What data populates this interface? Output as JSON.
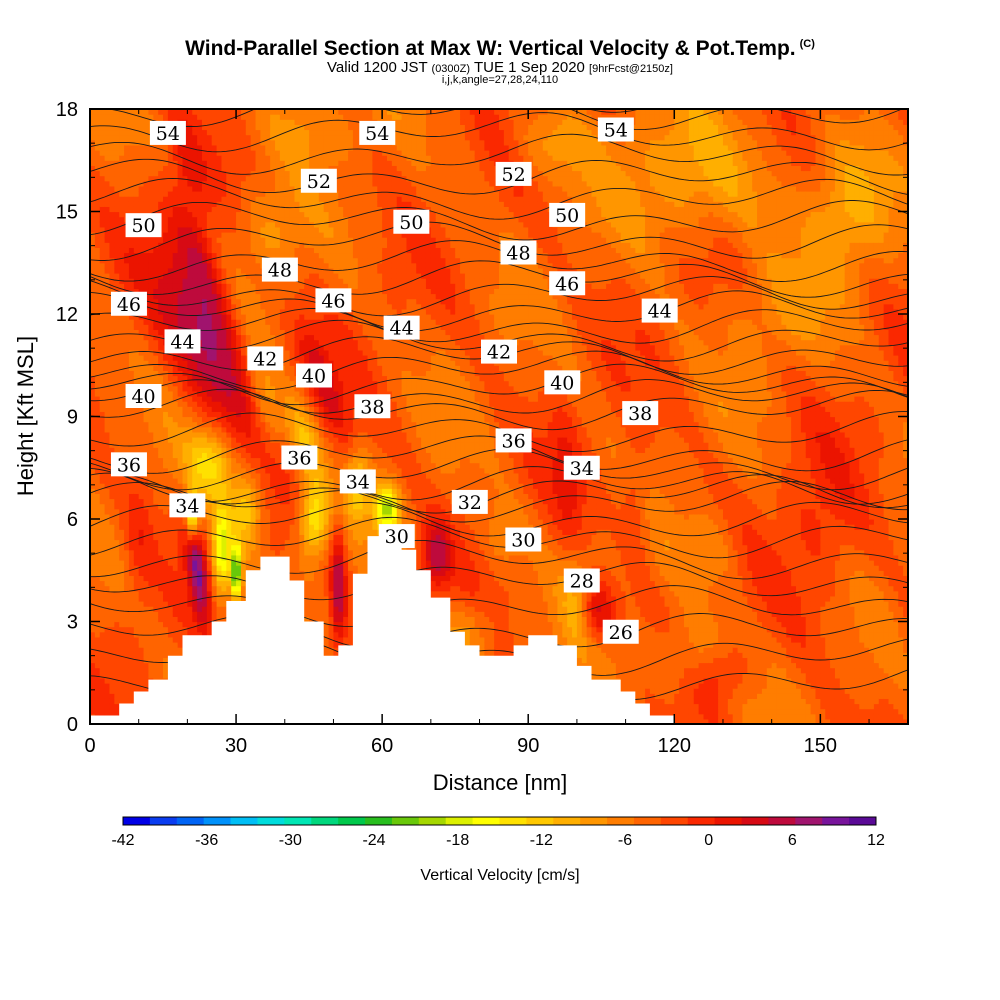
{
  "header": {
    "title_main": "Wind-Parallel Section at Max W: Vertical Velocity & Pot.Temp.",
    "title_tag": "(C)",
    "valid_prefix": "Valid 1200 JST",
    "valid_utc": "(0300Z)",
    "valid_date": "TUE 1 Sep 2020",
    "forecast": "[9hrFcst@2150z]",
    "section_params": "i,j,k,angle=27,28,24,110"
  },
  "chart_data": {
    "type": "heatmap",
    "title": "Wind-Parallel Section at Max W: Vertical Velocity & Pot.Temp.",
    "xlabel": "Distance [nm]",
    "ylabel": "Height [Kft MSL]",
    "xlim": [
      0,
      168
    ],
    "ylim": [
      0,
      18
    ],
    "xticks": [
      0,
      30,
      60,
      90,
      120,
      150
    ],
    "yticks": [
      0,
      3,
      6,
      9,
      12,
      15,
      18
    ],
    "colorbar": {
      "label": "Vertical Velocity [cm/s]",
      "min": -42,
      "max": 12,
      "step": 2,
      "tick_labels": [
        "-42",
        "-36",
        "-30",
        "-24",
        "-18",
        "-12",
        "-6",
        "0",
        "6",
        "12"
      ],
      "colors": [
        "#0000e6",
        "#0a3cf0",
        "#0064f5",
        "#0091fa",
        "#00bef5",
        "#00dcdc",
        "#00e6b4",
        "#00d77d",
        "#00c84b",
        "#28be1e",
        "#69c80a",
        "#a5d700",
        "#dcf000",
        "#ffff00",
        "#ffe100",
        "#ffc800",
        "#ffaf00",
        "#ff9600",
        "#ff7d00",
        "#ff6400",
        "#ff4600",
        "#fa2800",
        "#eb1400",
        "#d70a14",
        "#be0a3c",
        "#a0146e",
        "#78149b",
        "#5a0a96"
      ]
    },
    "contours": {
      "field": "Potential Temperature (C)",
      "labels": [
        {
          "v": 54,
          "x": 16,
          "y": 17.3
        },
        {
          "v": 54,
          "x": 59,
          "y": 17.3
        },
        {
          "v": 54,
          "x": 108,
          "y": 17.4
        },
        {
          "v": 52,
          "x": 47,
          "y": 15.9
        },
        {
          "v": 52,
          "x": 87,
          "y": 16.1
        },
        {
          "v": 50,
          "x": 11,
          "y": 14.6
        },
        {
          "v": 50,
          "x": 66,
          "y": 14.7
        },
        {
          "v": 50,
          "x": 98,
          "y": 14.9
        },
        {
          "v": 48,
          "x": 39,
          "y": 13.3
        },
        {
          "v": 48,
          "x": 88,
          "y": 13.8
        },
        {
          "v": 46,
          "x": 8,
          "y": 12.3
        },
        {
          "v": 46,
          "x": 50,
          "y": 12.4
        },
        {
          "v": 46,
          "x": 98,
          "y": 12.9
        },
        {
          "v": 44,
          "x": 19,
          "y": 11.2
        },
        {
          "v": 44,
          "x": 64,
          "y": 11.6
        },
        {
          "v": 44,
          "x": 117,
          "y": 12.1
        },
        {
          "v": 42,
          "x": 36,
          "y": 10.7
        },
        {
          "v": 42,
          "x": 84,
          "y": 10.9
        },
        {
          "v": 40,
          "x": 11,
          "y": 9.6
        },
        {
          "v": 40,
          "x": 46,
          "y": 10.2
        },
        {
          "v": 40,
          "x": 97,
          "y": 10.0
        },
        {
          "v": 38,
          "x": 58,
          "y": 9.3
        },
        {
          "v": 38,
          "x": 113,
          "y": 9.1
        },
        {
          "v": 36,
          "x": 8,
          "y": 7.6
        },
        {
          "v": 36,
          "x": 43,
          "y": 7.8
        },
        {
          "v": 36,
          "x": 87,
          "y": 8.3
        },
        {
          "v": 34,
          "x": 20,
          "y": 6.4
        },
        {
          "v": 34,
          "x": 55,
          "y": 7.1
        },
        {
          "v": 34,
          "x": 101,
          "y": 7.5
        },
        {
          "v": 32,
          "x": 78,
          "y": 6.5
        },
        {
          "v": 30,
          "x": 63,
          "y": 5.5
        },
        {
          "v": 30,
          "x": 89,
          "y": 5.4
        },
        {
          "v": 28,
          "x": 101,
          "y": 4.2
        },
        {
          "v": 26,
          "x": 109,
          "y": 2.7
        }
      ]
    },
    "terrain_kft": [
      [
        0,
        0.25
      ],
      [
        6,
        0.25
      ],
      [
        6,
        0.6
      ],
      [
        9,
        0.6
      ],
      [
        9,
        0.95
      ],
      [
        12,
        0.95
      ],
      [
        12,
        1.3
      ],
      [
        16,
        1.3
      ],
      [
        16,
        2.0
      ],
      [
        19,
        2.0
      ],
      [
        19,
        2.6
      ],
      [
        25,
        2.6
      ],
      [
        25,
        3.0
      ],
      [
        28,
        3.0
      ],
      [
        28,
        3.6
      ],
      [
        32,
        3.6
      ],
      [
        32,
        4.5
      ],
      [
        35,
        4.5
      ],
      [
        35,
        4.9
      ],
      [
        41,
        4.9
      ],
      [
        41,
        4.2
      ],
      [
        44,
        4.2
      ],
      [
        44,
        3.0
      ],
      [
        48,
        3.0
      ],
      [
        48,
        2.0
      ],
      [
        51,
        2.0
      ],
      [
        51,
        2.3
      ],
      [
        54,
        2.3
      ],
      [
        54,
        4.4
      ],
      [
        57,
        4.4
      ],
      [
        57,
        5.5
      ],
      [
        64,
        5.5
      ],
      [
        64,
        5.1
      ],
      [
        67,
        5.1
      ],
      [
        67,
        4.5
      ],
      [
        70,
        4.5
      ],
      [
        70,
        3.7
      ],
      [
        74,
        3.7
      ],
      [
        74,
        2.7
      ],
      [
        77,
        2.7
      ],
      [
        77,
        2.3
      ],
      [
        80,
        2.3
      ],
      [
        80,
        2.0
      ],
      [
        87,
        2.0
      ],
      [
        87,
        2.3
      ],
      [
        90,
        2.3
      ],
      [
        90,
        2.6
      ],
      [
        96,
        2.6
      ],
      [
        96,
        2.3
      ],
      [
        100,
        2.3
      ],
      [
        100,
        1.7
      ],
      [
        103,
        1.7
      ],
      [
        103,
        1.3
      ],
      [
        109,
        1.3
      ],
      [
        109,
        0.95
      ],
      [
        112,
        0.95
      ],
      [
        112,
        0.6
      ],
      [
        115,
        0.6
      ],
      [
        115,
        0.25
      ],
      [
        120,
        0.25
      ],
      [
        120,
        0
      ],
      [
        168,
        0
      ]
    ],
    "features": [
      {
        "name": "updraft",
        "x": 24,
        "y": 11.0,
        "rx": 6,
        "ry": 3.2,
        "rot": -35,
        "w": 11
      },
      {
        "name": "updraft",
        "x": 23,
        "y": 13.5,
        "rx": 3.5,
        "ry": 2.4,
        "rot": -30,
        "w": 8
      },
      {
        "name": "updraft",
        "x": 20,
        "y": 16.5,
        "rx": 3,
        "ry": 1.6,
        "rot": -20,
        "w": 4
      },
      {
        "name": "updraft",
        "x": 48,
        "y": 10.0,
        "rx": 3,
        "ry": 2.0,
        "rot": -30,
        "w": 7
      },
      {
        "name": "updraft",
        "x": 22,
        "y": 4.5,
        "rx": 2.0,
        "ry": 1.7,
        "rot": -10,
        "w": 11
      },
      {
        "name": "updraft",
        "x": 51,
        "y": 4.0,
        "rx": 1.6,
        "ry": 1.8,
        "rot": 0,
        "w": 10
      },
      {
        "name": "updraft",
        "x": 71,
        "y": 4.9,
        "rx": 3,
        "ry": 1.0,
        "rot": 0,
        "w": 9
      },
      {
        "name": "updraft",
        "x": 104,
        "y": 3.3,
        "rx": 4,
        "ry": 0.9,
        "rot": -10,
        "w": 8
      },
      {
        "name": "updraft",
        "x": 98,
        "y": 7.2,
        "rx": 3,
        "ry": 2.0,
        "rot": -10,
        "w": 4
      },
      {
        "name": "updraft",
        "x": 112,
        "y": 6.5,
        "rx": 3,
        "ry": 1.6,
        "rot": -10,
        "w": 4
      },
      {
        "name": "updraft",
        "x": 130,
        "y": 1.5,
        "rx": 5,
        "ry": 0.8,
        "rot": 0,
        "w": 4
      },
      {
        "name": "updraft",
        "x": 150,
        "y": 5.5,
        "rx": 8,
        "ry": 3.0,
        "rot": 0,
        "w": 3
      },
      {
        "name": "updraft",
        "x": 10,
        "y": 5.5,
        "rx": 3,
        "ry": 2.5,
        "rot": 0,
        "w": 3
      },
      {
        "name": "downdraft",
        "x": 27,
        "y": 5.0,
        "rx": 2.0,
        "ry": 1.4,
        "rot": 0,
        "w": -14
      },
      {
        "name": "downdraft",
        "x": 32,
        "y": 6.3,
        "rx": 3.5,
        "ry": 1.2,
        "rot": 0,
        "w": -10
      },
      {
        "name": "downdraft",
        "x": 25,
        "y": 7.7,
        "rx": 5,
        "ry": 1.1,
        "rot": 0,
        "w": -10
      },
      {
        "name": "downdraft",
        "x": 21,
        "y": 6.1,
        "rx": 1.3,
        "ry": 0.7,
        "rot": 0,
        "w": -17
      },
      {
        "name": "downdraft",
        "x": 30,
        "y": 4.4,
        "rx": 1.0,
        "ry": 0.8,
        "rot": 0,
        "w": -20
      },
      {
        "name": "downdraft",
        "x": 46,
        "y": 6.0,
        "rx": 3,
        "ry": 1.1,
        "rot": 0,
        "w": -12
      },
      {
        "name": "downdraft",
        "x": 44,
        "y": 8.3,
        "rx": 3,
        "ry": 1.3,
        "rot": -20,
        "w": -7
      },
      {
        "name": "downdraft",
        "x": 61,
        "y": 6.3,
        "rx": 2.5,
        "ry": 0.7,
        "rot": 0,
        "w": -15
      },
      {
        "name": "downdraft",
        "x": 36,
        "y": 9.2,
        "rx": 3,
        "ry": 1.5,
        "rot": -20,
        "w": -6
      },
      {
        "name": "downdraft",
        "x": 55,
        "y": 7.0,
        "rx": 2.5,
        "ry": 1.0,
        "rot": 0,
        "w": -8
      },
      {
        "name": "downdraft",
        "x": 37,
        "y": 14.5,
        "rx": 6,
        "ry": 1.5,
        "rot": -30,
        "w": -4
      },
      {
        "name": "downdraft",
        "x": 100,
        "y": 3.6,
        "rx": 3,
        "ry": 1.5,
        "rot": 0,
        "w": -5
      },
      {
        "name": "downdraft",
        "x": 122,
        "y": 2.0,
        "rx": 8,
        "ry": 1.2,
        "rot": 0,
        "w": -4
      },
      {
        "name": "downdraft",
        "x": 78,
        "y": 2.8,
        "rx": 6,
        "ry": 0.9,
        "rot": 0,
        "w": -4
      },
      {
        "name": "downdraft",
        "x": 125,
        "y": 16.0,
        "rx": 16,
        "ry": 2.0,
        "rot": 0,
        "w": -6
      },
      {
        "name": "downdraft",
        "x": 155,
        "y": 15.0,
        "rx": 8,
        "ry": 2.0,
        "rot": 0,
        "w": -6
      },
      {
        "name": "downdraft",
        "x": 95,
        "y": 17.0,
        "rx": 8,
        "ry": 1.0,
        "rot": 0,
        "w": -4
      },
      {
        "name": "downdraft",
        "x": 45,
        "y": 17.5,
        "rx": 10,
        "ry": 1.0,
        "rot": 0,
        "w": -4
      },
      {
        "name": "downdraft",
        "x": 140,
        "y": 12.0,
        "rx": 10,
        "ry": 1.5,
        "rot": 0,
        "w": -3
      },
      {
        "name": "downdraft",
        "x": 128,
        "y": 5.0,
        "rx": 6,
        "ry": 1.2,
        "rot": 0,
        "w": -3
      },
      {
        "name": "downdraft",
        "x": 85,
        "y": 5.5,
        "rx": 4,
        "ry": 1.0,
        "rot": 0,
        "w": -4
      }
    ]
  }
}
